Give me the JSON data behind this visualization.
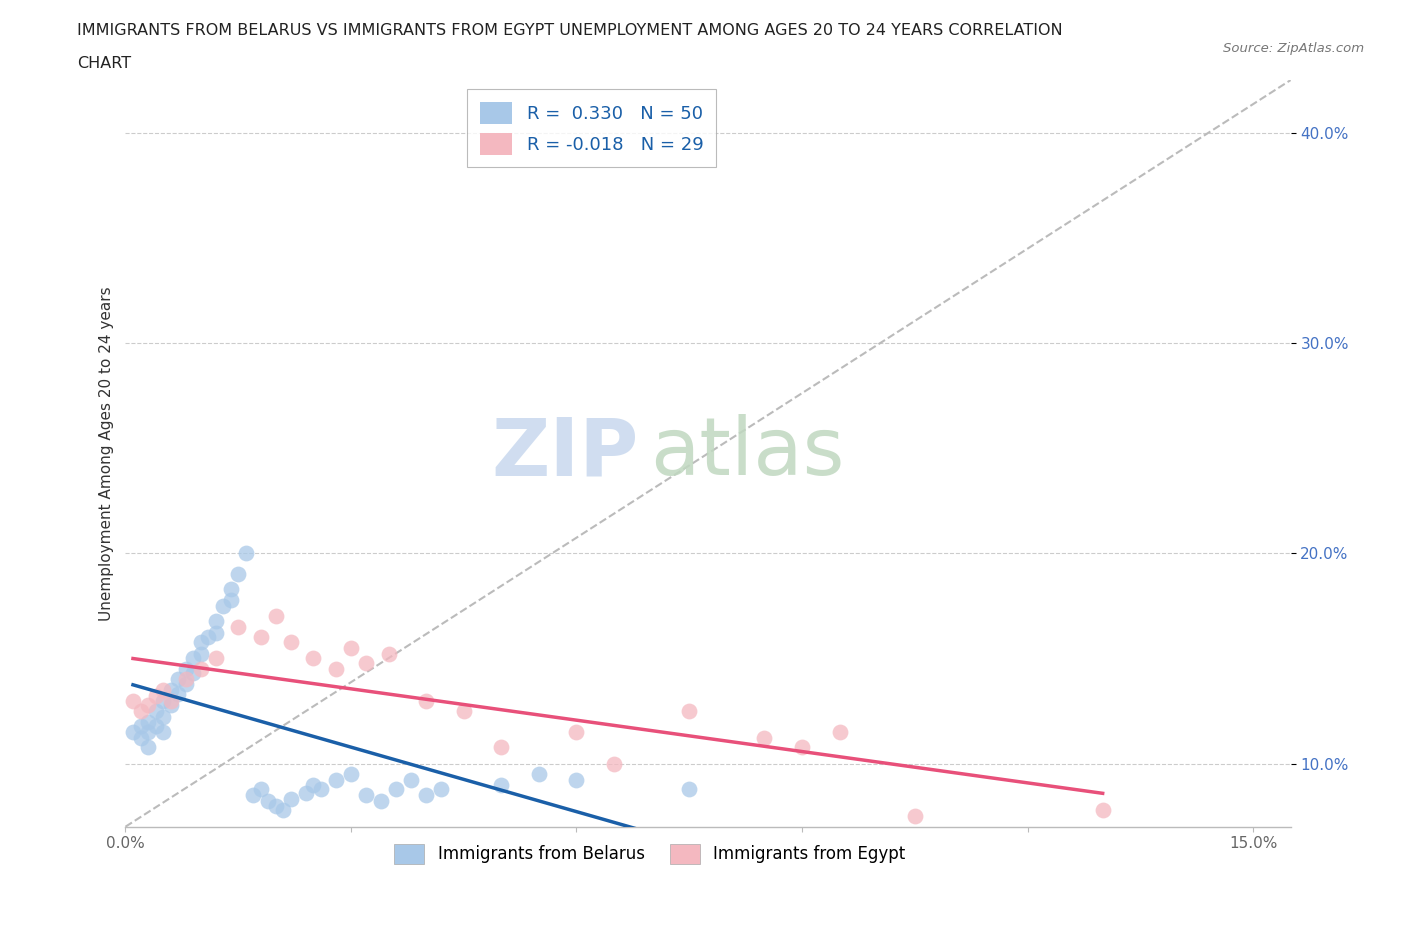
{
  "title_line1": "IMMIGRANTS FROM BELARUS VS IMMIGRANTS FROM EGYPT UNEMPLOYMENT AMONG AGES 20 TO 24 YEARS CORRELATION",
  "title_line2": "CHART",
  "source": "Source: ZipAtlas.com",
  "ylabel": "Unemployment Among Ages 20 to 24 years",
  "legend_labels": [
    "Immigrants from Belarus",
    "Immigrants from Egypt"
  ],
  "legend_R": [
    "R =  0.330",
    "R = -0.018"
  ],
  "legend_N": [
    "N = 50",
    "N = 29"
  ],
  "watermark_zip": "ZIP",
  "watermark_atlas": "atlas",
  "xlim": [
    0.0,
    0.155
  ],
  "ylim": [
    0.07,
    0.425
  ],
  "yticks": [
    0.1,
    0.2,
    0.3,
    0.4
  ],
  "xtick_positions": [
    0.0,
    0.03,
    0.06,
    0.09,
    0.12,
    0.15
  ],
  "color_belarus": "#a8c8e8",
  "color_egypt": "#f4b8c0",
  "color_trendline_belarus": "#1a5fa8",
  "color_trendline_egypt": "#e8507a",
  "color_ytick_label": "#4472c4",
  "color_xtick_label": "#666666",
  "background_color": "#ffffff",
  "grid_color": "#cccccc",
  "belarus_x": [
    0.001,
    0.002,
    0.002,
    0.003,
    0.003,
    0.003,
    0.004,
    0.004,
    0.005,
    0.005,
    0.005,
    0.006,
    0.006,
    0.007,
    0.007,
    0.008,
    0.008,
    0.009,
    0.009,
    0.01,
    0.01,
    0.011,
    0.012,
    0.012,
    0.013,
    0.014,
    0.014,
    0.015,
    0.016,
    0.017,
    0.018,
    0.019,
    0.02,
    0.021,
    0.022,
    0.024,
    0.025,
    0.026,
    0.028,
    0.03,
    0.032,
    0.034,
    0.036,
    0.038,
    0.04,
    0.042,
    0.05,
    0.055,
    0.06,
    0.075
  ],
  "belarus_y": [
    0.115,
    0.118,
    0.112,
    0.12,
    0.115,
    0.108,
    0.125,
    0.118,
    0.13,
    0.122,
    0.115,
    0.128,
    0.135,
    0.14,
    0.133,
    0.145,
    0.138,
    0.15,
    0.143,
    0.158,
    0.152,
    0.16,
    0.168,
    0.162,
    0.175,
    0.183,
    0.178,
    0.19,
    0.2,
    0.085,
    0.088,
    0.082,
    0.08,
    0.078,
    0.083,
    0.086,
    0.09,
    0.088,
    0.092,
    0.095,
    0.085,
    0.082,
    0.088,
    0.092,
    0.085,
    0.088,
    0.09,
    0.095,
    0.092,
    0.088
  ],
  "egypt_x": [
    0.001,
    0.002,
    0.003,
    0.004,
    0.005,
    0.006,
    0.008,
    0.01,
    0.012,
    0.015,
    0.018,
    0.02,
    0.022,
    0.025,
    0.028,
    0.03,
    0.032,
    0.035,
    0.04,
    0.045,
    0.05,
    0.06,
    0.065,
    0.075,
    0.085,
    0.09,
    0.095,
    0.105,
    0.13
  ],
  "egypt_y": [
    0.13,
    0.125,
    0.128,
    0.132,
    0.135,
    0.13,
    0.14,
    0.145,
    0.15,
    0.165,
    0.16,
    0.17,
    0.158,
    0.15,
    0.145,
    0.155,
    0.148,
    0.152,
    0.13,
    0.125,
    0.108,
    0.115,
    0.1,
    0.125,
    0.112,
    0.108,
    0.115,
    0.075,
    0.078
  ]
}
